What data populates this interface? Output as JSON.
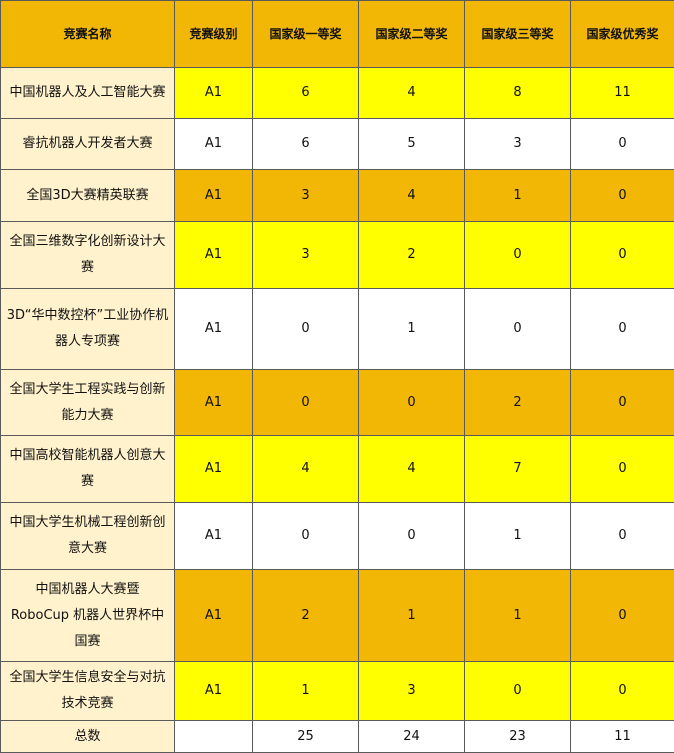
{
  "table": {
    "header": [
      "竞赛名称",
      "竞赛级别",
      "国家级一等奖",
      "国家级二等奖",
      "国家级三等奖",
      "国家级优秀奖"
    ],
    "rows": [
      [
        "中国机器人及人工智能大赛",
        "A1",
        6,
        4,
        8,
        11
      ],
      [
        "睿抗机器人开发者大赛",
        "A1",
        6,
        5,
        3,
        0
      ],
      [
        "全国3D大赛精英联赛",
        "A1",
        3,
        4,
        1,
        0
      ],
      [
        "全国三维数字化创新设计大赛",
        "A1",
        3,
        2,
        0,
        0
      ],
      [
        "3D“华中数控杯”工业协作机器人专项赛",
        "A1",
        0,
        1,
        0,
        0
      ],
      [
        "全国大学生工程实践与创新能力大赛",
        "A1",
        0,
        0,
        2,
        0
      ],
      [
        "中国高校智能机器人创意大赛",
        "A1",
        4,
        4,
        7,
        0
      ],
      [
        "中国大学生机械工程创新创意大赛",
        "A1",
        0,
        0,
        1,
        0
      ],
      [
        "中国机器人大赛暨 RoboCup 机器人世界杯中国赛",
        "A1",
        2,
        1,
        1,
        0
      ],
      [
        "全国大学生信息安全与对抗技术竞赛",
        "A1",
        1,
        3,
        0,
        0
      ]
    ],
    "total": {
      "label": "总数",
      "values": [
        25,
        24,
        23,
        11
      ]
    }
  }
}
